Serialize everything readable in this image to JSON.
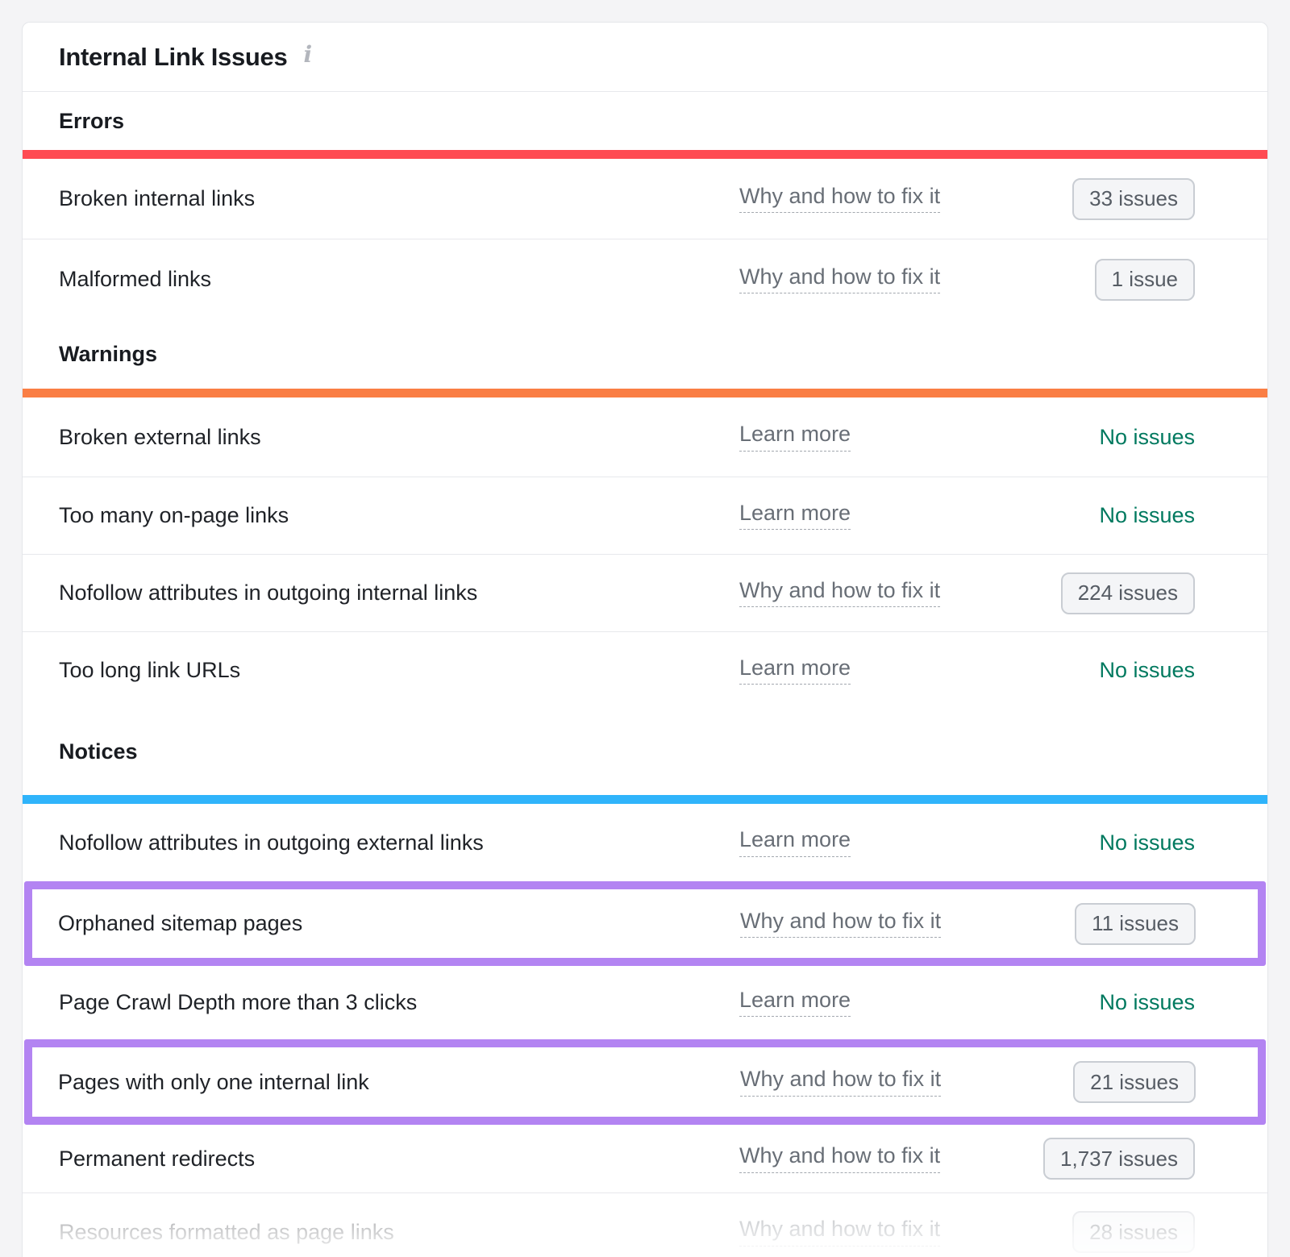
{
  "card": {
    "title": "Internal Link Issues",
    "info_icon": "i"
  },
  "colors": {
    "error_bar": "#ff4a52",
    "warning_bar": "#fa7e44",
    "notice_bar": "#2fb4fb",
    "highlight": "#b384f2",
    "no_issues_text": "#00795f"
  },
  "sections": [
    {
      "label": "Errors",
      "rows": [
        {
          "label": "Broken internal links",
          "link": "Why and how to fix it",
          "badge": "33 issues"
        },
        {
          "label": "Malformed links",
          "link": "Why and how to fix it",
          "badge": "1 issue"
        }
      ]
    },
    {
      "label": "Warnings",
      "rows": [
        {
          "label": "Broken external links",
          "link": "Learn more",
          "status": "No issues"
        },
        {
          "label": "Too many on-page links",
          "link": "Learn more",
          "status": "No issues"
        },
        {
          "label": "Nofollow attributes in outgoing internal links",
          "link": "Why and how to fix it",
          "badge": "224 issues"
        },
        {
          "label": "Too long link URLs",
          "link": "Learn more",
          "status": "No issues"
        }
      ]
    },
    {
      "label": "Notices",
      "rows": [
        {
          "label": "Nofollow attributes in outgoing external links",
          "link": "Learn more",
          "status": "No issues"
        },
        {
          "label": "Orphaned sitemap pages",
          "link": "Why and how to fix it",
          "badge": "11 issues",
          "highlighted": true
        },
        {
          "label": "Page Crawl Depth more than 3 clicks",
          "link": "Learn more",
          "status": "No issues"
        },
        {
          "label": "Pages with only one internal link",
          "link": "Why and how to fix it",
          "badge": "21 issues",
          "highlighted": true
        },
        {
          "label": "Permanent redirects",
          "link": "Why and how to fix it",
          "badge": "1,737 issues"
        },
        {
          "label": "Resources formatted as page links",
          "link": "Why and how to fix it",
          "badge": "28 issues",
          "faded": true
        }
      ]
    }
  ]
}
